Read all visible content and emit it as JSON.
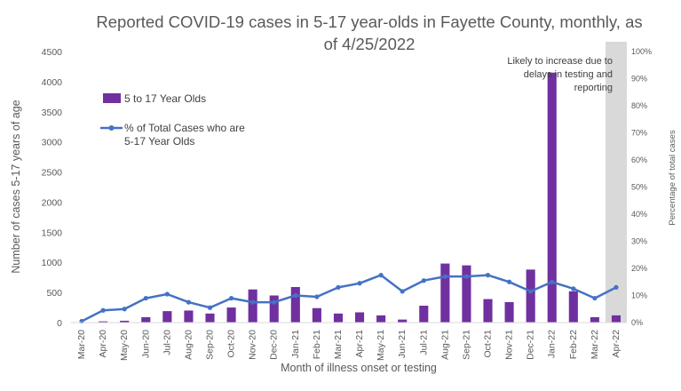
{
  "chart_data": {
    "type": "bar+line",
    "title": "Reported COVID-19 cases in 5-17 year-olds in Fayette County, monthly, as of 4/25/2022",
    "title_lines": [
      "Reported COVID-19 cases in 5-17 year-olds in Fayette County, monthly, as",
      "of 4/25/2022"
    ],
    "xlabel": "Month of illness onset or testing",
    "ylabel": "Number of cases 5-17 years of age",
    "y2label": "Percentage of total cases",
    "ylim": [
      0,
      4500
    ],
    "yticks": [
      0,
      500,
      1000,
      1500,
      2000,
      2500,
      3000,
      3500,
      4000,
      4500
    ],
    "y2lim": [
      0,
      100
    ],
    "y2ticks": [
      "0%",
      "10%",
      "20%",
      "30%",
      "40%",
      "50%",
      "60%",
      "70%",
      "80%",
      "90%",
      "100%"
    ],
    "categories": [
      "Mar-20",
      "Apr-20",
      "May-20",
      "Jun-20",
      "Jul-20",
      "Aug-20",
      "Sep-20",
      "Oct-20",
      "Nov-20",
      "Dec-20",
      "Jan-21",
      "Feb-21",
      "Mar-21",
      "Apr-21",
      "May-21",
      "Jun-21",
      "Jul-21",
      "Aug-21",
      "Sep-21",
      "Oct-21",
      "Nov-21",
      "Dec-21",
      "Jan-22",
      "Feb-22",
      "Mar-22",
      "Apr-22"
    ],
    "series": [
      {
        "name": "5 to 17 Year Olds",
        "type": "bar",
        "axis": "left",
        "color": "#7030a0",
        "values": [
          5,
          20,
          30,
          90,
          190,
          200,
          150,
          250,
          550,
          450,
          590,
          240,
          150,
          170,
          120,
          50,
          280,
          980,
          950,
          390,
          340,
          880,
          4150,
          520,
          90,
          120
        ]
      },
      {
        "name": "% of Total Cases who are 5-17 Year Olds",
        "type": "line",
        "axis": "right",
        "color": "#4472c4",
        "values": [
          0.5,
          4.5,
          5,
          9,
          10.5,
          7.5,
          5.5,
          9,
          7.5,
          7.5,
          10,
          9.5,
          13,
          14.5,
          17.5,
          11.5,
          15.5,
          17,
          17,
          17.5,
          15,
          11.5,
          15,
          12.5,
          9,
          13
        ]
      }
    ],
    "legend_lines": {
      "bar": [
        "5 to 17 Year Olds"
      ],
      "line": [
        "% of Total Cases who are",
        "5-17 Year Olds"
      ]
    },
    "shaded_category": "Apr-22",
    "shade_color": "#d9d9d9",
    "annotation_lines": [
      "Likely to increase due to",
      "delays in testing and",
      "reporting"
    ],
    "grid": false,
    "legend_position": "top-left"
  }
}
